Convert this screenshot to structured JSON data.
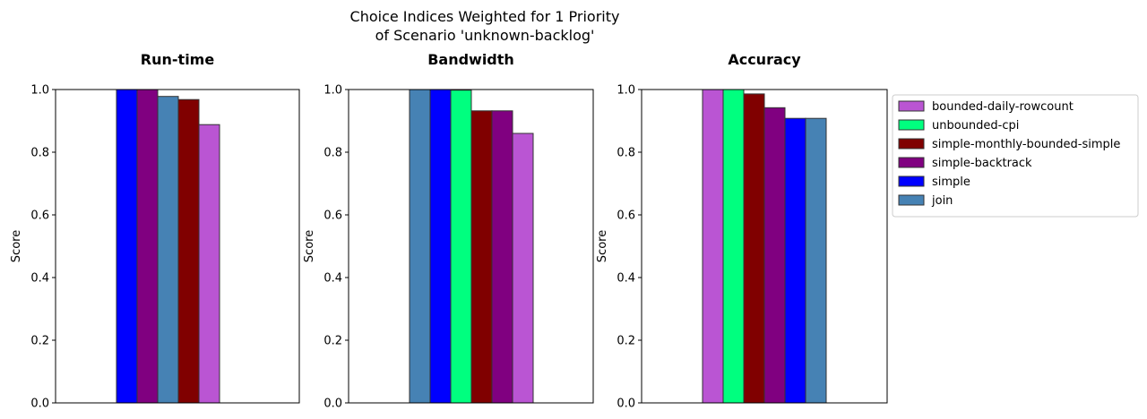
{
  "suptitle_line1": "Choice Indices Weighted for 1 Priority",
  "suptitle_line2": "of Scenario 'unknown-backlog'",
  "legend": [
    {
      "name": "bounded-daily-rowcount",
      "color": "#ba55d3"
    },
    {
      "name": "unbounded-cpi",
      "color": "#00ff7f"
    },
    {
      "name": "simple-monthly-bounded-simple",
      "color": "#800000"
    },
    {
      "name": "simple-backtrack",
      "color": "#800080"
    },
    {
      "name": "simple",
      "color": "#0000ff"
    },
    {
      "name": "join",
      "color": "#4682b4"
    }
  ],
  "chart_data": [
    {
      "type": "bar",
      "title": "Run-time",
      "ylabel": "Score",
      "ylim": [
        0,
        1
      ],
      "yticks": [
        "0.0",
        "0.2",
        "0.4",
        "0.6",
        "0.8",
        "1.0"
      ],
      "bars": [
        {
          "series": "simple",
          "value": 1.0,
          "color": "#0000ff"
        },
        {
          "series": "simple-backtrack",
          "value": 1.0,
          "color": "#800080"
        },
        {
          "series": "join",
          "value": 0.978,
          "color": "#4682b4"
        },
        {
          "series": "simple-monthly-bounded-simple",
          "value": 0.968,
          "color": "#800000"
        },
        {
          "series": "bounded-daily-rowcount",
          "value": 0.888,
          "color": "#ba55d3"
        },
        {
          "series": "unbounded-cpi",
          "value": 0.0,
          "color": "#00ff7f"
        }
      ]
    },
    {
      "type": "bar",
      "title": "Bandwidth",
      "ylabel": "Score",
      "ylim": [
        0,
        1
      ],
      "yticks": [
        "0.0",
        "0.2",
        "0.4",
        "0.6",
        "0.8",
        "1.0"
      ],
      "bars": [
        {
          "series": "join",
          "value": 1.0,
          "color": "#4682b4"
        },
        {
          "series": "simple",
          "value": 1.0,
          "color": "#0000ff"
        },
        {
          "series": "unbounded-cpi",
          "value": 0.998,
          "color": "#00ff7f"
        },
        {
          "series": "simple-monthly-bounded-simple",
          "value": 0.932,
          "color": "#800000"
        },
        {
          "series": "simple-backtrack",
          "value": 0.932,
          "color": "#800080"
        },
        {
          "series": "bounded-daily-rowcount",
          "value": 0.86,
          "color": "#ba55d3"
        }
      ]
    },
    {
      "type": "bar",
      "title": "Accuracy",
      "ylabel": "Score",
      "ylim": [
        0,
        1
      ],
      "yticks": [
        "0.0",
        "0.2",
        "0.4",
        "0.6",
        "0.8",
        "1.0"
      ],
      "bars": [
        {
          "series": "bounded-daily-rowcount",
          "value": 1.0,
          "color": "#ba55d3"
        },
        {
          "series": "unbounded-cpi",
          "value": 1.0,
          "color": "#00ff7f"
        },
        {
          "series": "simple-monthly-bounded-simple",
          "value": 0.986,
          "color": "#800000"
        },
        {
          "series": "simple-backtrack",
          "value": 0.942,
          "color": "#800080"
        },
        {
          "series": "simple",
          "value": 0.908,
          "color": "#0000ff"
        },
        {
          "series": "join",
          "value": 0.908,
          "color": "#4682b4"
        }
      ]
    }
  ]
}
